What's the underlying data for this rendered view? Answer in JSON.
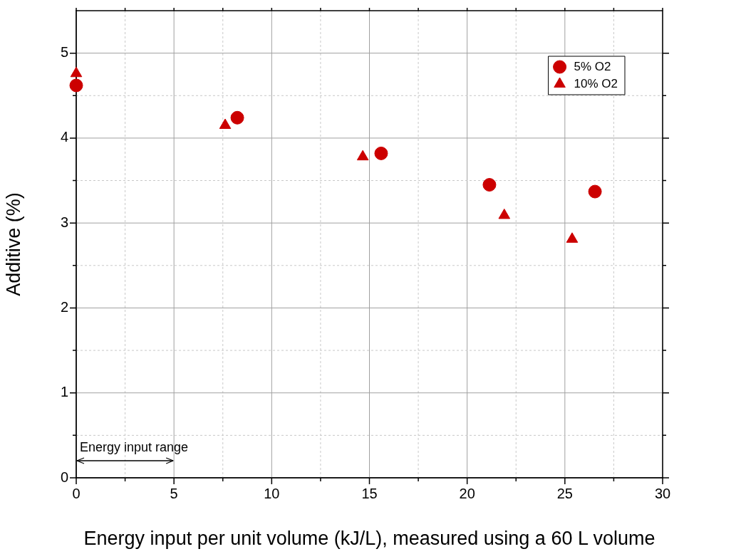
{
  "chart_data": {
    "type": "scatter",
    "xlabel": "Energy input per unit volume (kJ/L), measured using a 60 L volume",
    "ylabel": "Additive (%)",
    "series": [
      {
        "name": "5% O2",
        "color": "#cc0000",
        "marker": "circle",
        "x": [
          0,
          8.24,
          15.6,
          21.14,
          26.54
        ],
        "values": [
          4.62,
          4.24,
          3.82,
          3.45,
          3.37
        ]
      },
      {
        "name": "10% O2",
        "color": "#cc0000",
        "marker": "triangle",
        "x": [
          0,
          7.62,
          14.66,
          21.9,
          25.37
        ],
        "values": [
          4.76,
          4.15,
          3.78,
          3.09,
          2.81
        ]
      }
    ],
    "xlim": [
      0,
      30
    ],
    "xticks": [
      0,
      {
        "value": 2.5,
        "label": null
      },
      5,
      {
        "value": 7.5,
        "label": null
      },
      10,
      {
        "value": 12.5,
        "label": null
      },
      15,
      {
        "value": 17.5,
        "label": null
      },
      20,
      {
        "value": 22.5,
        "label": null
      },
      25,
      {
        "value": 27.5,
        "label": null
      },
      30
    ],
    "ylim": [
      0,
      5.5
    ],
    "yticks": [
      0,
      {
        "value": 0.5,
        "label": null
      },
      1,
      {
        "value": 1.5,
        "label": null
      },
      2,
      {
        "value": 2.5,
        "label": null
      },
      3,
      {
        "value": 3.5,
        "label": null
      },
      4,
      {
        "value": 4.5,
        "label": null
      },
      5
    ],
    "grid": true,
    "legend": "top right",
    "annotations": [
      "Energy input range"
    ]
  }
}
